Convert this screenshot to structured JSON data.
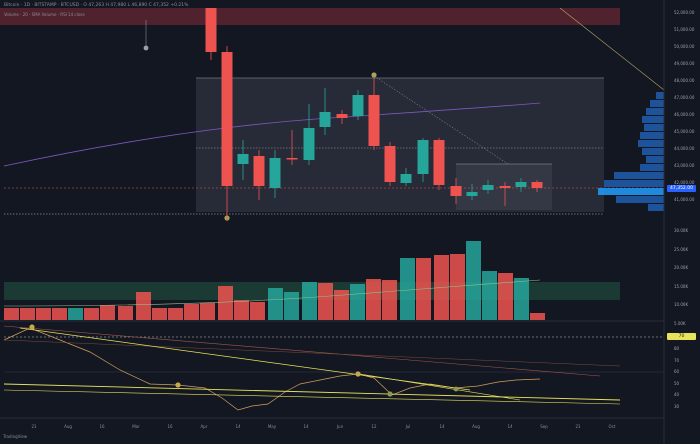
{
  "header": {
    "symbol_line": "Bitcoin · 1D · BITSTAMP · BTCUSD · O 47,263 H 47,980 L 46,890 C 47,352 +0.21%",
    "indicator_line": "Volume · 20 · SMA Volume · RSI 14 close"
  },
  "colors": {
    "background": "#131722",
    "up": "#26a69a",
    "down": "#ef5350",
    "ma": "#7e57c2",
    "profile": "#2962ff",
    "rsi": "#d4a05a",
    "trend": "#e8e35a"
  },
  "price_axis": {
    "labels": [
      "52,000.00",
      "51,000.00",
      "50,000.00",
      "49,000.00",
      "48,000.00",
      "47,000.00",
      "46,000.00",
      "45,000.00",
      "44,000.00",
      "43,000.00",
      "42,000.00",
      "41,000.00"
    ],
    "current_price": "47,352.00",
    "current_color": "#2962ff"
  },
  "volume_axis": {
    "labels": [
      "30.00K",
      "25.00K",
      "20.00K",
      "15.00K",
      "10.00K",
      "5.00K"
    ]
  },
  "rsi_axis": {
    "labels": [
      "80",
      "70",
      "60",
      "50",
      "40",
      "30"
    ],
    "badge": "70"
  },
  "time_axis": {
    "labels": [
      "21",
      "Aug",
      "16",
      "Mar",
      "16",
      "Apr",
      "14",
      "May",
      "14",
      "Jun",
      "12",
      "Jul",
      "14",
      "Aug",
      "14",
      "Sep",
      "21",
      "Oct"
    ]
  },
  "footer": {
    "text": "TradingView"
  }
}
